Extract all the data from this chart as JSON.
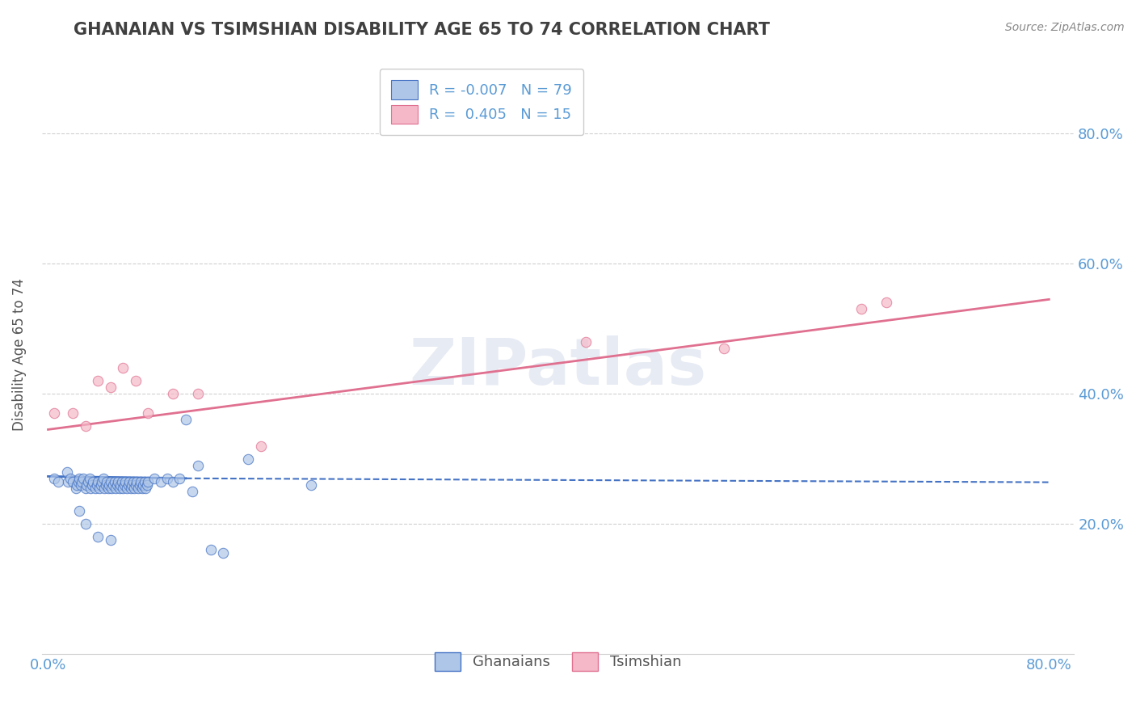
{
  "title": "GHANAIAN VS TSIMSHIAN DISABILITY AGE 65 TO 74 CORRELATION CHART",
  "source_text": "Source: ZipAtlas.com",
  "xlabel": "",
  "ylabel": "Disability Age 65 to 74",
  "xlim": [
    -0.005,
    0.82
  ],
  "ylim": [
    0.0,
    0.92
  ],
  "xtick_vals": [
    0.0,
    0.8
  ],
  "xtick_labels": [
    "0.0%",
    "80.0%"
  ],
  "ytick_vals": [
    0.2,
    0.4,
    0.6,
    0.8
  ],
  "ytick_labels_right": [
    "20.0%",
    "40.0%",
    "60.0%",
    "80.0%"
  ],
  "blue_color": "#aec6e8",
  "blue_color_dark": "#4472c4",
  "pink_color": "#f4b8c8",
  "pink_color_dark": "#e07090",
  "legend_text1": "R = -0.007   N = 79",
  "legend_text2": "R =  0.405   N = 15",
  "legend_label1": "Ghanaians",
  "legend_label2": "Tsimshian",
  "title_color": "#404040",
  "axis_color": "#5b9bd5",
  "watermark": "ZIPatlas",
  "blue_scatter_x": [
    0.005,
    0.008,
    0.015,
    0.016,
    0.018,
    0.02,
    0.022,
    0.023,
    0.024,
    0.025,
    0.026,
    0.027,
    0.028,
    0.03,
    0.031,
    0.032,
    0.033,
    0.034,
    0.035,
    0.036,
    0.038,
    0.039,
    0.04,
    0.041,
    0.042,
    0.043,
    0.044,
    0.045,
    0.046,
    0.047,
    0.048,
    0.049,
    0.05,
    0.051,
    0.052,
    0.053,
    0.054,
    0.055,
    0.056,
    0.057,
    0.058,
    0.059,
    0.06,
    0.061,
    0.062,
    0.063,
    0.064,
    0.065,
    0.066,
    0.067,
    0.068,
    0.069,
    0.07,
    0.071,
    0.072,
    0.073,
    0.074,
    0.075,
    0.076,
    0.077,
    0.078,
    0.079,
    0.08,
    0.085,
    0.09,
    0.095,
    0.1,
    0.105,
    0.11,
    0.115,
    0.12,
    0.13,
    0.14,
    0.16,
    0.21,
    0.025,
    0.03,
    0.04,
    0.05
  ],
  "blue_scatter_y": [
    0.27,
    0.265,
    0.28,
    0.265,
    0.27,
    0.265,
    0.255,
    0.26,
    0.265,
    0.27,
    0.26,
    0.265,
    0.27,
    0.255,
    0.26,
    0.265,
    0.27,
    0.255,
    0.26,
    0.265,
    0.255,
    0.26,
    0.265,
    0.255,
    0.26,
    0.265,
    0.27,
    0.255,
    0.26,
    0.265,
    0.255,
    0.26,
    0.265,
    0.255,
    0.26,
    0.265,
    0.255,
    0.26,
    0.265,
    0.255,
    0.26,
    0.265,
    0.255,
    0.26,
    0.265,
    0.255,
    0.26,
    0.265,
    0.255,
    0.26,
    0.265,
    0.255,
    0.26,
    0.265,
    0.255,
    0.26,
    0.265,
    0.255,
    0.26,
    0.265,
    0.255,
    0.26,
    0.265,
    0.27,
    0.265,
    0.27,
    0.265,
    0.27,
    0.36,
    0.25,
    0.29,
    0.16,
    0.155,
    0.3,
    0.26,
    0.22,
    0.2,
    0.18,
    0.175
  ],
  "pink_scatter_x": [
    0.005,
    0.02,
    0.03,
    0.04,
    0.05,
    0.06,
    0.07,
    0.08,
    0.1,
    0.12,
    0.17,
    0.43,
    0.54,
    0.65,
    0.67
  ],
  "pink_scatter_y": [
    0.37,
    0.37,
    0.35,
    0.42,
    0.41,
    0.44,
    0.42,
    0.37,
    0.4,
    0.4,
    0.32,
    0.48,
    0.47,
    0.53,
    0.54
  ],
  "blue_trend_x1": 0.0,
  "blue_trend_y1": 0.273,
  "blue_trend_x2_solid": 0.11,
  "blue_trend_y2_solid": 0.27,
  "blue_trend_x2": 0.8,
  "blue_trend_y2": 0.264,
  "pink_trend_x1": 0.0,
  "pink_trend_y1": 0.345,
  "pink_trend_x2": 0.8,
  "pink_trend_y2": 0.545,
  "grid_color": "#d0d0d0",
  "background_color": "#ffffff"
}
